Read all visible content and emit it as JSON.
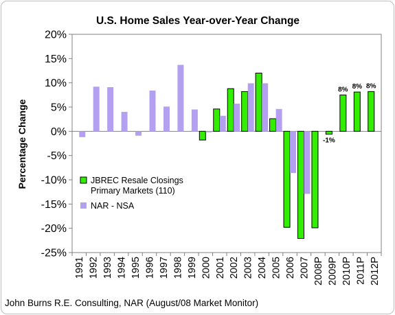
{
  "chart_data": {
    "type": "bar",
    "title": "U.S. Home Sales Year-over-Year Change",
    "xlabel": "",
    "ylabel": "Percentage Change",
    "ylim": [
      -25,
      20
    ],
    "y_tick_step": 5,
    "y_tick_suffix": "%",
    "grid": false,
    "legend_position": "left-middle",
    "categories": [
      "1991",
      "1992",
      "1993",
      "1994",
      "1995",
      "1996",
      "1997",
      "1998",
      "1999",
      "2000",
      "2001",
      "2002",
      "2003",
      "2004",
      "2005",
      "2006",
      "2007",
      "2008P",
      "2009P",
      "2010P",
      "2011P",
      "2012P"
    ],
    "series": [
      {
        "name": "JBREC Resale Closings Primary Markets (110)",
        "legend_lines": [
          "JBREC Resale Closings",
          "Primary Markets (110)"
        ],
        "color": "#33ee00",
        "values": [
          null,
          null,
          null,
          null,
          null,
          null,
          null,
          null,
          null,
          -1.8,
          4.6,
          8.8,
          8.2,
          12.0,
          2.6,
          -19.8,
          -22.1,
          -19.9,
          -0.6,
          7.5,
          8.1,
          8.2
        ]
      },
      {
        "name": "NAR - NSA",
        "legend_lines": [
          "NAR - NSA"
        ],
        "color": "#b4a0f0",
        "values": [
          -1.2,
          9.2,
          9.1,
          4.0,
          -0.9,
          8.4,
          5.1,
          13.7,
          4.5,
          -0.2,
          3.2,
          5.7,
          9.9,
          9.9,
          4.6,
          -8.6,
          -12.9,
          null,
          null,
          null,
          null,
          null
        ]
      }
    ],
    "data_labels": [
      {
        "category": "2009P",
        "text": "-1%",
        "position": "below"
      },
      {
        "category": "2010P",
        "text": "8%",
        "position": "above"
      },
      {
        "category": "2011P",
        "text": "8%",
        "position": "above"
      },
      {
        "category": "2012P",
        "text": "8%",
        "position": "above"
      }
    ],
    "source_note": "John Burns R.E. Consulting, NAR (August/08 Market Monitor)"
  }
}
